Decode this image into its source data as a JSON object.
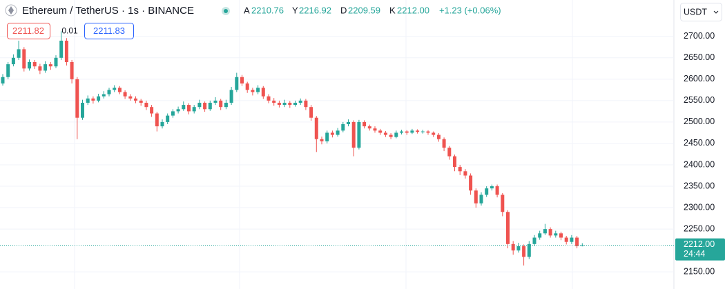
{
  "header": {
    "title": "Ethereum / TetherUS · 1s · BINANCE",
    "ohlc": [
      {
        "key": "A",
        "value": "2210.76"
      },
      {
        "key": "Y",
        "value": "2216.92"
      },
      {
        "key": "D",
        "value": "2209.59"
      },
      {
        "key": "K",
        "value": "2212.00"
      }
    ],
    "change": "+1.23 (+0.06%)"
  },
  "quote": {
    "bid": "2211.82",
    "spread": "0.01",
    "ask": "2211.83"
  },
  "currency": "USDT",
  "chart_data": {
    "type": "candlestick",
    "up_color": "#26a69a",
    "down_color": "#ef5350",
    "grid": true,
    "ylim": [
      2110,
      2785
    ],
    "yticks": [
      {
        "value": 2150,
        "label": "2150.00"
      },
      {
        "value": 2250,
        "label": "2250.00"
      },
      {
        "value": 2300,
        "label": "2300.00"
      },
      {
        "value": 2350,
        "label": "2350.00"
      },
      {
        "value": 2400,
        "label": "2400.00"
      },
      {
        "value": 2450,
        "label": "2450.00"
      },
      {
        "value": 2500,
        "label": "2500.00"
      },
      {
        "value": 2550,
        "label": "2550.00"
      },
      {
        "value": 2600,
        "label": "2600.00"
      },
      {
        "value": 2650,
        "label": "2650.00"
      },
      {
        "value": 2700,
        "label": "2700.00"
      }
    ],
    "price_line": {
      "value": 2212,
      "label": "2212.00",
      "countdown": "24:44"
    },
    "open": [
      2590,
      2605,
      2635,
      2650,
      2670,
      2625,
      2640,
      2630,
      2620,
      2635,
      2630,
      2650,
      2690,
      2640,
      2600,
      2510,
      2545,
      2555,
      2550,
      2560,
      2565,
      2575,
      2580,
      2570,
      2560,
      2555,
      2550,
      2545,
      2535,
      2520,
      2490,
      2500,
      2515,
      2525,
      2530,
      2540,
      2525,
      2535,
      2545,
      2530,
      2545,
      2550,
      2535,
      2545,
      2575,
      2605,
      2590,
      2575,
      2570,
      2580,
      2560,
      2550,
      2545,
      2540,
      2545,
      2540,
      2545,
      2550,
      2535,
      2510,
      2460,
      2455,
      2475,
      2470,
      2480,
      2495,
      2500,
      2440,
      2500,
      2490,
      2485,
      2480,
      2475,
      2470,
      2465,
      2475,
      2478,
      2475,
      2480,
      2477,
      2478,
      2475,
      2470,
      2460,
      2440,
      2420,
      2395,
      2385,
      2375,
      2340,
      2310,
      2330,
      2345,
      2350,
      2330,
      2290,
      2215,
      2200,
      2210,
      2185,
      2215,
      2230,
      2240,
      2250,
      2235,
      2240,
      2230,
      2220,
      2230,
      2210.76
    ],
    "high": [
      2612,
      2640,
      2658,
      2690,
      2675,
      2646,
      2645,
      2636,
      2642,
      2640,
      2656,
      2712,
      2696,
      2645,
      2605,
      2552,
      2562,
      2560,
      2566,
      2572,
      2580,
      2586,
      2584,
      2574,
      2565,
      2560,
      2554,
      2550,
      2540,
      2524,
      2506,
      2520,
      2530,
      2536,
      2548,
      2544,
      2540,
      2552,
      2548,
      2550,
      2558,
      2554,
      2552,
      2582,
      2615,
      2610,
      2594,
      2580,
      2586,
      2584,
      2565,
      2556,
      2550,
      2552,
      2549,
      2550,
      2555,
      2554,
      2540,
      2514,
      2466,
      2480,
      2480,
      2486,
      2500,
      2506,
      2504,
      2505,
      2504,
      2494,
      2490,
      2484,
      2479,
      2474,
      2480,
      2482,
      2481,
      2484,
      2483,
      2482,
      2481,
      2478,
      2474,
      2464,
      2444,
      2424,
      2400,
      2390,
      2380,
      2345,
      2336,
      2350,
      2354,
      2354,
      2334,
      2294,
      2222,
      2218,
      2214,
      2222,
      2236,
      2246,
      2262,
      2254,
      2246,
      2244,
      2234,
      2236,
      2234,
      2216.92
    ],
    "low": [
      2585,
      2600,
      2630,
      2645,
      2618,
      2620,
      2624,
      2612,
      2615,
      2622,
      2626,
      2645,
      2632,
      2590,
      2460,
      2505,
      2540,
      2543,
      2546,
      2555,
      2560,
      2570,
      2565,
      2554,
      2550,
      2544,
      2538,
      2528,
      2512,
      2478,
      2485,
      2495,
      2510,
      2520,
      2526,
      2518,
      2520,
      2530,
      2524,
      2526,
      2540,
      2528,
      2530,
      2540,
      2570,
      2584,
      2568,
      2562,
      2565,
      2554,
      2544,
      2538,
      2534,
      2535,
      2533,
      2536,
      2540,
      2528,
      2503,
      2430,
      2448,
      2450,
      2464,
      2466,
      2476,
      2490,
      2420,
      2436,
      2485,
      2480,
      2475,
      2470,
      2465,
      2460,
      2462,
      2471,
      2470,
      2472,
      2473,
      2473,
      2470,
      2465,
      2454,
      2432,
      2412,
      2385,
      2376,
      2368,
      2330,
      2300,
      2305,
      2325,
      2340,
      2324,
      2280,
      2205,
      2190,
      2195,
      2165,
      2180,
      2210,
      2225,
      2236,
      2230,
      2230,
      2224,
      2214,
      2215,
      2205,
      2209.59
    ],
    "close": [
      2605,
      2635,
      2650,
      2670,
      2625,
      2640,
      2630,
      2620,
      2635,
      2630,
      2650,
      2690,
      2640,
      2600,
      2510,
      2545,
      2555,
      2550,
      2560,
      2565,
      2575,
      2580,
      2570,
      2560,
      2555,
      2550,
      2545,
      2535,
      2520,
      2490,
      2500,
      2515,
      2525,
      2530,
      2540,
      2525,
      2535,
      2545,
      2530,
      2545,
      2550,
      2535,
      2545,
      2575,
      2605,
      2590,
      2575,
      2570,
      2580,
      2560,
      2550,
      2545,
      2540,
      2545,
      2540,
      2545,
      2550,
      2535,
      2510,
      2460,
      2455,
      2475,
      2470,
      2480,
      2495,
      2500,
      2440,
      2500,
      2490,
      2485,
      2480,
      2475,
      2470,
      2465,
      2475,
      2478,
      2475,
      2480,
      2477,
      2478,
      2475,
      2470,
      2460,
      2440,
      2420,
      2395,
      2385,
      2375,
      2340,
      2310,
      2330,
      2345,
      2350,
      2330,
      2290,
      2215,
      2200,
      2210,
      2185,
      2215,
      2230,
      2240,
      2250,
      2235,
      2240,
      2230,
      2220,
      2230,
      2210,
      2212
    ]
  }
}
